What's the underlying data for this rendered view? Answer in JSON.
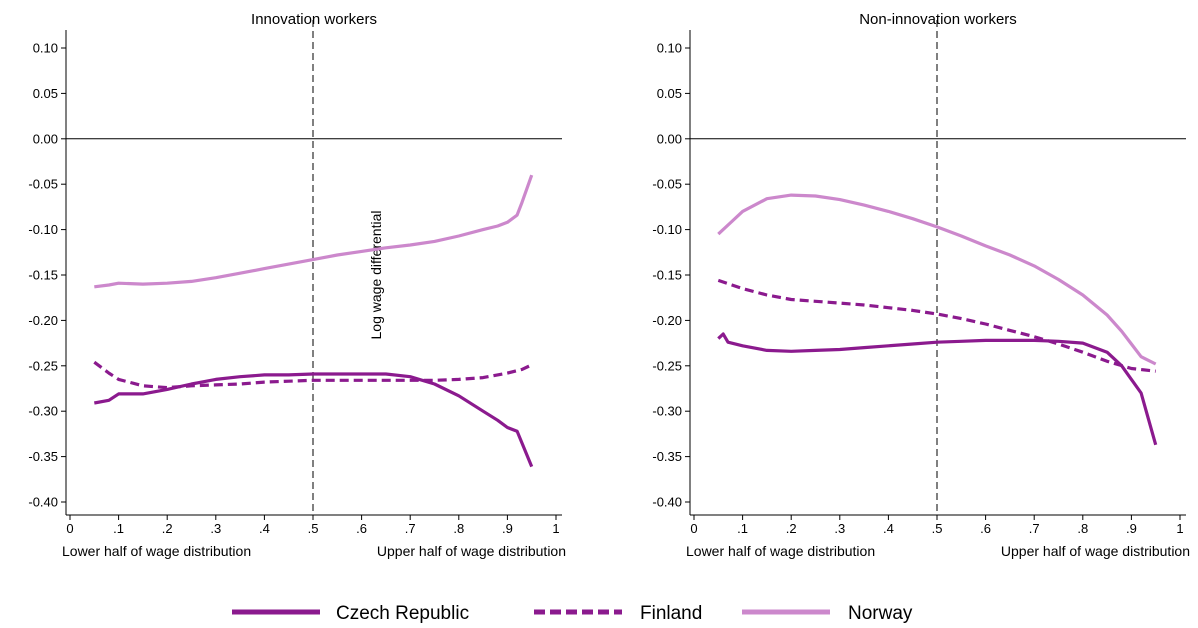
{
  "colors": {
    "czech": "#8b1a8e",
    "finland": "#8b1a8e",
    "norway": "#cc88cc"
  },
  "legend": [
    {
      "label": "Czech Republic",
      "color": "#8b1a8e",
      "dash": "solid"
    },
    {
      "label": "Finland",
      "color": "#8b1a8e",
      "dash": "dashed"
    },
    {
      "label": "Norway",
      "color": "#cc88cc",
      "dash": "solid"
    }
  ],
  "chart_data": [
    {
      "type": "line",
      "title": "Innovation workers",
      "rotated_label": "Log wage differential",
      "xlabel_left": "Lower half of wage distribution",
      "xlabel_right": "Upper half of wage distribution",
      "xlim": [
        0,
        1
      ],
      "ylim": [
        -0.4,
        0.1
      ],
      "xticks": [
        "0",
        ".1",
        ".2",
        ".3",
        ".4",
        ".5",
        ".6",
        ".7",
        ".8",
        ".9",
        "1"
      ],
      "yticks": [
        "0.10",
        "0.05",
        "0.00",
        "-0.05",
        "-0.10",
        "-0.15",
        "-0.20",
        "-0.25",
        "-0.30",
        "-0.35",
        "-0.40"
      ],
      "reference_x": 0.5,
      "reference_y": 0.0,
      "series": [
        {
          "name": "Czech Republic",
          "x": [
            0.05,
            0.08,
            0.1,
            0.15,
            0.2,
            0.25,
            0.3,
            0.35,
            0.4,
            0.45,
            0.5,
            0.55,
            0.6,
            0.65,
            0.7,
            0.75,
            0.8,
            0.85,
            0.88,
            0.9,
            0.92,
            0.95
          ],
          "y": [
            -0.291,
            -0.288,
            -0.281,
            -0.281,
            -0.276,
            -0.27,
            -0.265,
            -0.262,
            -0.26,
            -0.26,
            -0.259,
            -0.259,
            -0.259,
            -0.259,
            -0.262,
            -0.27,
            -0.283,
            -0.3,
            -0.31,
            -0.318,
            -0.322,
            -0.361
          ]
        },
        {
          "name": "Finland",
          "x": [
            0.05,
            0.08,
            0.1,
            0.15,
            0.2,
            0.25,
            0.3,
            0.35,
            0.4,
            0.45,
            0.5,
            0.55,
            0.6,
            0.65,
            0.7,
            0.75,
            0.8,
            0.85,
            0.9,
            0.93,
            0.95
          ],
          "y": [
            -0.246,
            -0.258,
            -0.265,
            -0.272,
            -0.274,
            -0.272,
            -0.271,
            -0.27,
            -0.268,
            -0.267,
            -0.266,
            -0.266,
            -0.266,
            -0.266,
            -0.266,
            -0.266,
            -0.265,
            -0.263,
            -0.258,
            -0.254,
            -0.249
          ]
        },
        {
          "name": "Norway",
          "x": [
            0.05,
            0.08,
            0.1,
            0.15,
            0.2,
            0.25,
            0.3,
            0.35,
            0.4,
            0.45,
            0.5,
            0.55,
            0.6,
            0.65,
            0.7,
            0.75,
            0.8,
            0.85,
            0.88,
            0.9,
            0.92,
            0.93,
            0.95
          ],
          "y": [
            -0.163,
            -0.161,
            -0.159,
            -0.16,
            -0.159,
            -0.157,
            -0.153,
            -0.148,
            -0.143,
            -0.138,
            -0.133,
            -0.128,
            -0.124,
            -0.12,
            -0.117,
            -0.113,
            -0.107,
            -0.1,
            -0.096,
            -0.092,
            -0.084,
            -0.07,
            -0.04
          ]
        }
      ]
    },
    {
      "type": "line",
      "title": "Non-innovation workers",
      "xlabel_left": "Lower half of wage distribution",
      "xlabel_right": "Upper half of wage distribution",
      "xlim": [
        0,
        1
      ],
      "ylim": [
        -0.4,
        0.1
      ],
      "xticks": [
        "0",
        ".1",
        ".2",
        ".3",
        ".4",
        ".5",
        ".6",
        ".7",
        ".8",
        ".9",
        "1"
      ],
      "yticks": [
        "0.10",
        "0.05",
        "0.00",
        "-0.05",
        "-0.10",
        "-0.15",
        "-0.20",
        "-0.25",
        "-0.30",
        "-0.35",
        "-0.40"
      ],
      "reference_x": 0.5,
      "reference_y": 0.0,
      "series": [
        {
          "name": "Czech Republic",
          "x": [
            0.05,
            0.06,
            0.07,
            0.1,
            0.15,
            0.2,
            0.25,
            0.3,
            0.35,
            0.4,
            0.45,
            0.5,
            0.55,
            0.6,
            0.65,
            0.7,
            0.75,
            0.8,
            0.85,
            0.88,
            0.9,
            0.92,
            0.95
          ],
          "y": [
            -0.22,
            -0.215,
            -0.224,
            -0.228,
            -0.233,
            -0.234,
            -0.233,
            -0.232,
            -0.23,
            -0.228,
            -0.226,
            -0.224,
            -0.223,
            -0.222,
            -0.222,
            -0.222,
            -0.223,
            -0.225,
            -0.235,
            -0.25,
            -0.265,
            -0.28,
            -0.337
          ]
        },
        {
          "name": "Finland",
          "x": [
            0.05,
            0.1,
            0.15,
            0.2,
            0.25,
            0.3,
            0.35,
            0.4,
            0.45,
            0.5,
            0.55,
            0.6,
            0.65,
            0.7,
            0.75,
            0.8,
            0.85,
            0.9,
            0.95
          ],
          "y": [
            -0.156,
            -0.165,
            -0.172,
            -0.177,
            -0.179,
            -0.181,
            -0.183,
            -0.186,
            -0.189,
            -0.193,
            -0.198,
            -0.204,
            -0.211,
            -0.218,
            -0.226,
            -0.235,
            -0.245,
            -0.253,
            -0.256
          ]
        },
        {
          "name": "Norway",
          "x": [
            0.05,
            0.08,
            0.1,
            0.15,
            0.2,
            0.25,
            0.3,
            0.35,
            0.4,
            0.45,
            0.5,
            0.55,
            0.6,
            0.65,
            0.7,
            0.75,
            0.8,
            0.85,
            0.88,
            0.9,
            0.92,
            0.95
          ],
          "y": [
            -0.105,
            -0.09,
            -0.08,
            -0.066,
            -0.062,
            -0.063,
            -0.067,
            -0.073,
            -0.08,
            -0.088,
            -0.097,
            -0.107,
            -0.118,
            -0.128,
            -0.14,
            -0.155,
            -0.172,
            -0.194,
            -0.212,
            -0.226,
            -0.24,
            -0.248
          ]
        }
      ]
    }
  ]
}
